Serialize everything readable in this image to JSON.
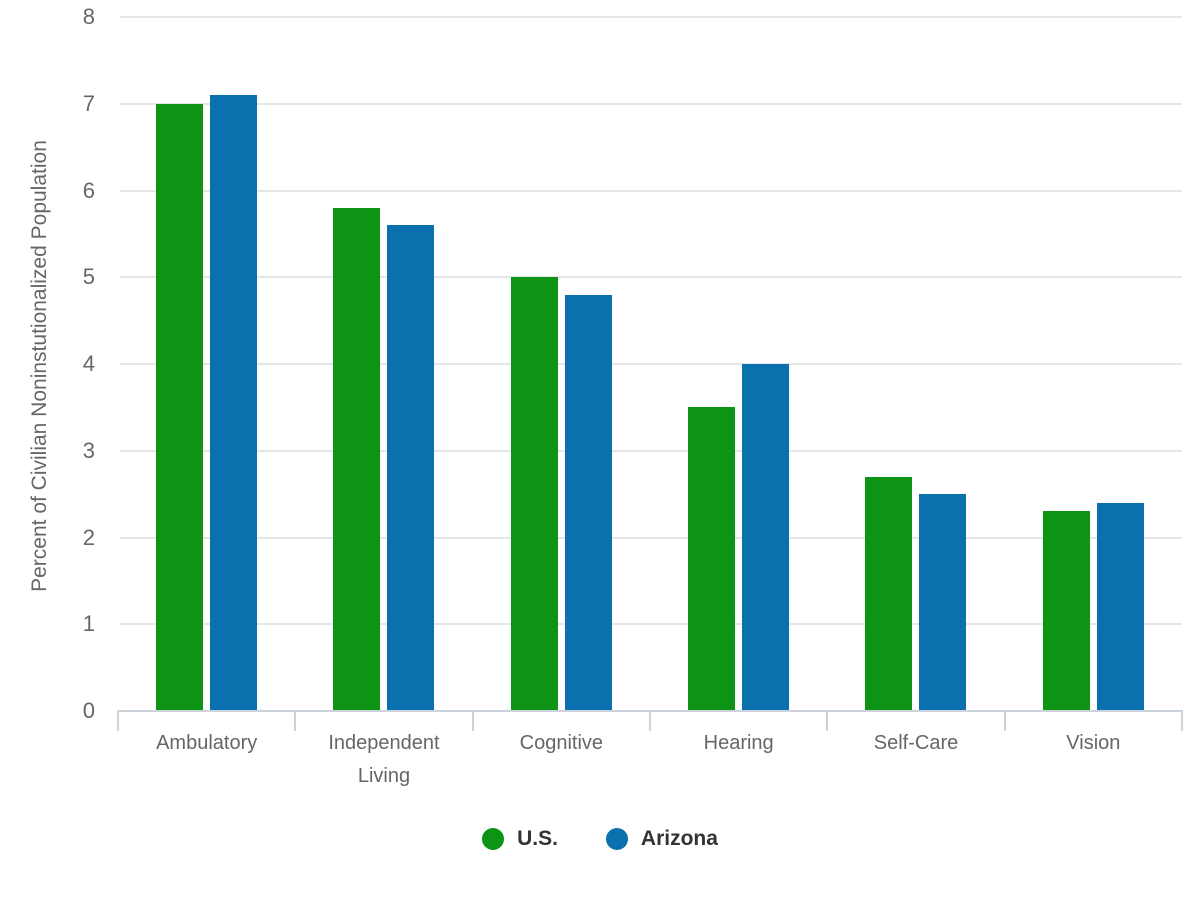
{
  "chart_data": {
    "type": "bar",
    "title": "",
    "categories": [
      "Ambulatory",
      "Independent Living",
      "Cognitive",
      "Hearing",
      "Self-Care",
      "Vision"
    ],
    "series": [
      {
        "name": "U.S.",
        "color": "#0e9415",
        "values": [
          7.0,
          5.8,
          5.0,
          3.5,
          2.7,
          2.3
        ]
      },
      {
        "name": "Arizona",
        "color": "#0b70ae",
        "values": [
          7.1,
          5.6,
          4.8,
          4.0,
          2.5,
          2.4
        ]
      }
    ],
    "xlabel": "",
    "ylabel": "Percent of Civilian Noninstutionalized Population",
    "ylim": [
      0,
      8
    ],
    "yticks": [
      "0",
      "1",
      "2",
      "3",
      "4",
      "5",
      "6",
      "7",
      "8"
    ],
    "grid": true,
    "legend_position": "bottom"
  },
  "colors": {
    "background": "#ffffff",
    "gridline": "#e6e6e6",
    "axis_line": "#ccd3da",
    "axis_text": "#666666",
    "legend_text": "#333333"
  }
}
